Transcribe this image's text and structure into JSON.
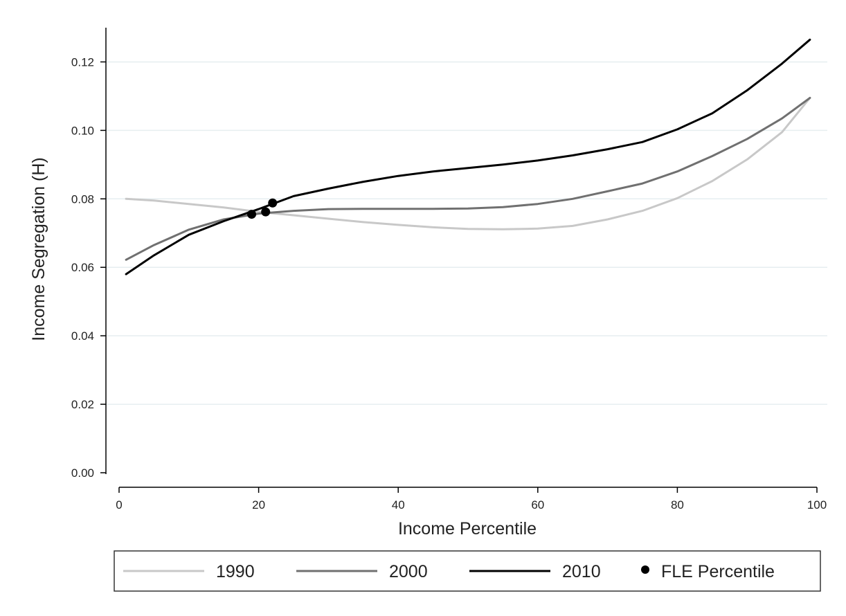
{
  "chart_data": {
    "type": "line",
    "xlabel": "Income Percentile",
    "ylabel": "Income Segregation (H)",
    "xlim": [
      0,
      100
    ],
    "ylim": [
      0,
      0.13
    ],
    "xticks": [
      "0",
      "20",
      "40",
      "60",
      "80",
      "100"
    ],
    "yticks": [
      "0.00",
      "0.02",
      "0.04",
      "0.06",
      "0.08",
      "0.10",
      "0.12"
    ],
    "grid": "horizontal",
    "legend_position": "bottom",
    "series": [
      {
        "name": "1990",
        "color": "#c8c8c8",
        "x": [
          1,
          5,
          10,
          15,
          20,
          25,
          30,
          35,
          40,
          45,
          50,
          55,
          60,
          65,
          70,
          75,
          80,
          85,
          90,
          95,
          99
        ],
        "y": [
          0.08,
          0.0795,
          0.0785,
          0.0775,
          0.0762,
          0.0752,
          0.0742,
          0.0732,
          0.0724,
          0.0717,
          0.0712,
          0.0711,
          0.0713,
          0.0721,
          0.074,
          0.0765,
          0.0802,
          0.0852,
          0.0915,
          0.0995,
          0.1095
        ]
      },
      {
        "name": "2000",
        "color": "#707070",
        "x": [
          1,
          5,
          10,
          15,
          20,
          25,
          30,
          35,
          40,
          45,
          50,
          55,
          60,
          65,
          70,
          75,
          80,
          85,
          90,
          95,
          99
        ],
        "y": [
          0.0622,
          0.0665,
          0.071,
          0.074,
          0.0757,
          0.0765,
          0.077,
          0.0771,
          0.0771,
          0.0771,
          0.0772,
          0.0776,
          0.0785,
          0.08,
          0.0822,
          0.0845,
          0.088,
          0.0925,
          0.0975,
          0.1035,
          0.1095
        ]
      },
      {
        "name": "2010",
        "color": "#000000",
        "x": [
          1,
          5,
          10,
          15,
          20,
          25,
          30,
          35,
          40,
          45,
          50,
          55,
          60,
          65,
          70,
          75,
          80,
          85,
          90,
          95,
          99
        ],
        "y": [
          0.058,
          0.0635,
          0.0695,
          0.0735,
          0.077,
          0.0808,
          0.083,
          0.085,
          0.0867,
          0.088,
          0.089,
          0.09,
          0.0912,
          0.0927,
          0.0945,
          0.0966,
          0.1003,
          0.105,
          0.1117,
          0.1195,
          0.1265
        ]
      }
    ],
    "points": {
      "name": "FLE Percentile",
      "color": "#000000",
      "x": [
        19,
        21,
        22
      ],
      "y": [
        0.0755,
        0.0762,
        0.0788
      ]
    }
  }
}
